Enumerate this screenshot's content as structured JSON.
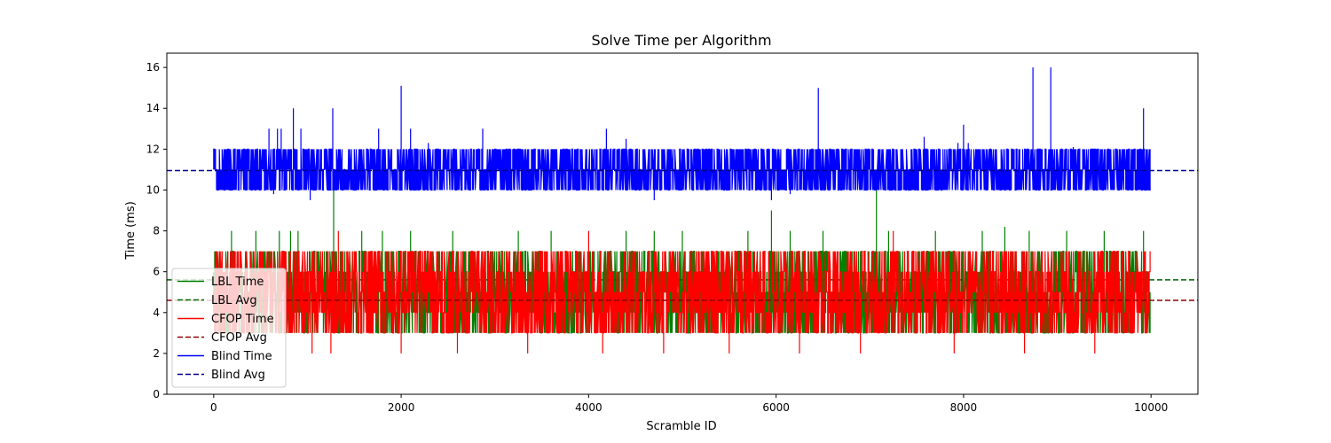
{
  "chart_data": {
    "type": "line",
    "title": "Solve Time per Algorithm",
    "xlabel": "Scramble ID",
    "ylabel": "Time (ms)",
    "xlim": [
      -500,
      10500
    ],
    "ylim": [
      0,
      16.7
    ],
    "xticks": [
      0,
      2000,
      4000,
      6000,
      8000,
      10000
    ],
    "yticks": [
      0,
      2,
      4,
      6,
      8,
      10,
      12,
      14,
      16
    ],
    "x_range": [
      0,
      9999
    ],
    "grid": false,
    "legend_position": "lower-left",
    "series": [
      {
        "name": "LBL Time",
        "color": "#008000",
        "style": "solid",
        "typical_range": [
          3,
          7
        ],
        "spikes": [
          [
            190,
            8
          ],
          [
            450,
            8
          ],
          [
            700,
            8
          ],
          [
            820,
            8
          ],
          [
            900,
            8
          ],
          [
            1280,
            10
          ],
          [
            1580,
            8
          ],
          [
            1800,
            8
          ],
          [
            2100,
            8
          ],
          [
            2550,
            8
          ],
          [
            3250,
            8
          ],
          [
            3600,
            8
          ],
          [
            4400,
            8
          ],
          [
            4700,
            8
          ],
          [
            5000,
            8
          ],
          [
            5700,
            8
          ],
          [
            5950,
            9
          ],
          [
            6150,
            8
          ],
          [
            6500,
            8
          ],
          [
            7070,
            10
          ],
          [
            7200,
            8
          ],
          [
            7700,
            8
          ],
          [
            8200,
            8
          ],
          [
            8440,
            8.2
          ],
          [
            8700,
            8
          ],
          [
            9100,
            8
          ],
          [
            9500,
            8
          ],
          [
            9920,
            8
          ]
        ]
      },
      {
        "name": "LBL Avg",
        "color": "#006400",
        "style": "dashed",
        "value": 5.6
      },
      {
        "name": "CFOP Time",
        "color": "#ff0000",
        "style": "solid",
        "typical_range": [
          3,
          7
        ],
        "dips": [
          [
            1050,
            2
          ],
          [
            1250,
            2
          ],
          [
            2000,
            2
          ],
          [
            2600,
            2
          ],
          [
            3350,
            2
          ],
          [
            4150,
            2
          ],
          [
            4800,
            2
          ],
          [
            5500,
            2
          ],
          [
            6250,
            2
          ],
          [
            6900,
            2
          ],
          [
            7900,
            2
          ],
          [
            8650,
            2
          ],
          [
            9400,
            2
          ]
        ],
        "spikes": [
          [
            1330,
            8
          ],
          [
            4000,
            8
          ],
          [
            7250,
            8
          ]
        ]
      },
      {
        "name": "CFOP Avg",
        "color": "#8b0000",
        "style": "dashed",
        "value": 4.6
      },
      {
        "name": "Blind Time",
        "color": "#0000ff",
        "style": "solid",
        "typical_range": [
          10,
          12
        ],
        "spikes": [
          [
            585,
            13
          ],
          [
            680,
            13
          ],
          [
            720,
            13
          ],
          [
            850,
            14
          ],
          [
            930,
            13
          ],
          [
            1270,
            14
          ],
          [
            1760,
            13
          ],
          [
            2000,
            15.1
          ],
          [
            2100,
            13
          ],
          [
            2290,
            12.3
          ],
          [
            2870,
            13
          ],
          [
            4190,
            13
          ],
          [
            4400,
            12.5
          ],
          [
            6450,
            15
          ],
          [
            7580,
            12.6
          ],
          [
            7940,
            12.3
          ],
          [
            8000,
            13.2
          ],
          [
            8050,
            12.3
          ],
          [
            8740,
            16
          ],
          [
            8930,
            16
          ],
          [
            9170,
            12.1
          ],
          [
            9920,
            14
          ]
        ],
        "dips": [
          [
            640,
            9.8
          ],
          [
            1030,
            9.5
          ],
          [
            4700,
            9.5
          ],
          [
            5950,
            9.5
          ],
          [
            6150,
            9.8
          ]
        ]
      },
      {
        "name": "Blind Avg",
        "color": "#00008b",
        "style": "dashed",
        "value": 10.95
      }
    ]
  }
}
